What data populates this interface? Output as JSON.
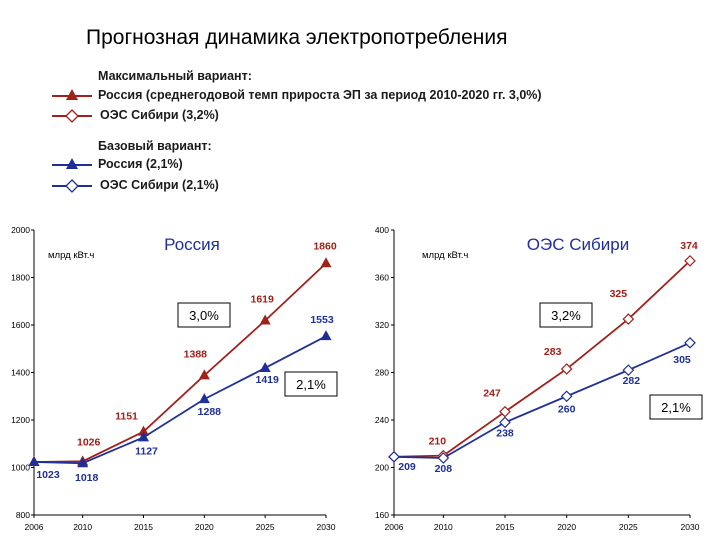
{
  "page": {
    "title": "Прогнозная динамика электропотребления"
  },
  "legend": {
    "max_heading": "Максимальный вариант:",
    "max_russia": "Россия (среднегодовой темп прироста ЭП за период 2010-2020 гг. 3,0%)",
    "max_oes": "ОЭС Сибири (3,2%)",
    "base_heading": "Базовый вариант:",
    "base_russia": "Россия (2,1%)",
    "base_oes": "ОЭС Сибири (2,1%)"
  },
  "colors": {
    "max": "#a0201a",
    "base": "#1f2f9a",
    "panel_border": "#000000"
  },
  "chart_data": [
    {
      "type": "line",
      "title": "Россия",
      "ylabel": "млрд кВт.ч",
      "x": [
        2006,
        2010,
        2015,
        2020,
        2025,
        2030
      ],
      "ylim": [
        800,
        2000
      ],
      "yticks": [
        800,
        1000,
        1200,
        1400,
        1600,
        1800,
        2000
      ],
      "growth_labels": [
        "3,0%",
        "2,1%"
      ],
      "series": [
        {
          "name": "Максимальный вариант",
          "variant": "max",
          "marker": "triangle",
          "values": [
            1023,
            1026,
            1151,
            1388,
            1619,
            1860
          ],
          "labels": [
            "",
            "1026",
            "1151",
            "1388",
            "1619",
            "1860"
          ]
        },
        {
          "name": "Базовый вариант",
          "variant": "base",
          "marker": "triangle",
          "values": [
            1023,
            1018,
            1127,
            1288,
            1419,
            1553
          ],
          "labels": [
            "1023",
            "1018",
            "1127",
            "1288",
            "1419",
            "1553"
          ]
        }
      ]
    },
    {
      "type": "line",
      "title": "ОЭС Сибири",
      "ylabel": "млрд кВт.ч",
      "x": [
        2006,
        2010,
        2015,
        2020,
        2025,
        2030
      ],
      "ylim": [
        160,
        400
      ],
      "yticks": [
        160,
        200,
        240,
        280,
        320,
        360,
        400
      ],
      "growth_labels": [
        "3,2%",
        "2,1%"
      ],
      "series": [
        {
          "name": "Максимальный вариант",
          "variant": "max",
          "marker": "diamond",
          "values": [
            209,
            210,
            247,
            283,
            325,
            374
          ],
          "labels": [
            "",
            "210",
            "247",
            "283",
            "325",
            "374"
          ]
        },
        {
          "name": "Базовый вариант",
          "variant": "base",
          "marker": "diamond",
          "values": [
            209,
            208,
            238,
            260,
            282,
            305
          ],
          "labels": [
            "209",
            "208",
            "238",
            "260",
            "282",
            "305"
          ]
        }
      ]
    }
  ]
}
